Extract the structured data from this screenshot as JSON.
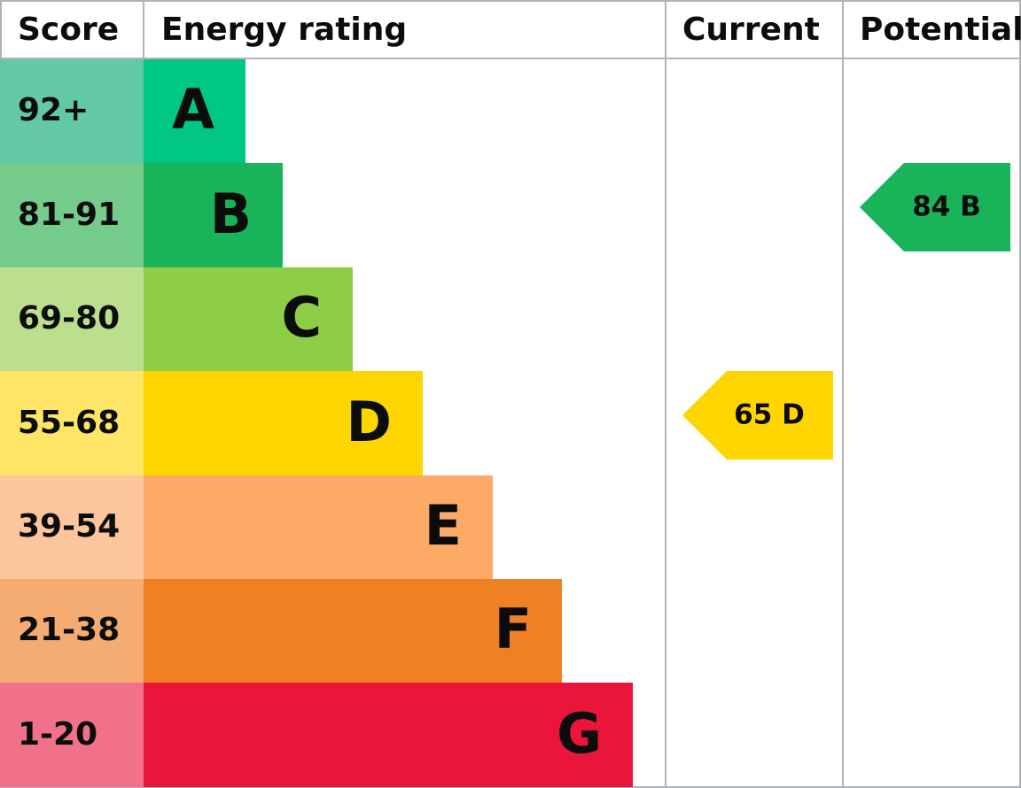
{
  "header": {
    "score": "Score",
    "energy_rating": "Energy rating",
    "current": "Current",
    "potential": "Potential"
  },
  "rows": [
    {
      "score": "92+",
      "rating": "A"
    },
    {
      "score": "81-91",
      "rating": "B"
    },
    {
      "score": "69-80",
      "rating": "C"
    },
    {
      "score": "55-68",
      "rating": "D"
    },
    {
      "score": "39-54",
      "rating": "E"
    },
    {
      "score": "21-38",
      "rating": "F"
    },
    {
      "score": "1-20",
      "rating": "G"
    }
  ],
  "current": "65 D",
  "potential": "84 B"
}
